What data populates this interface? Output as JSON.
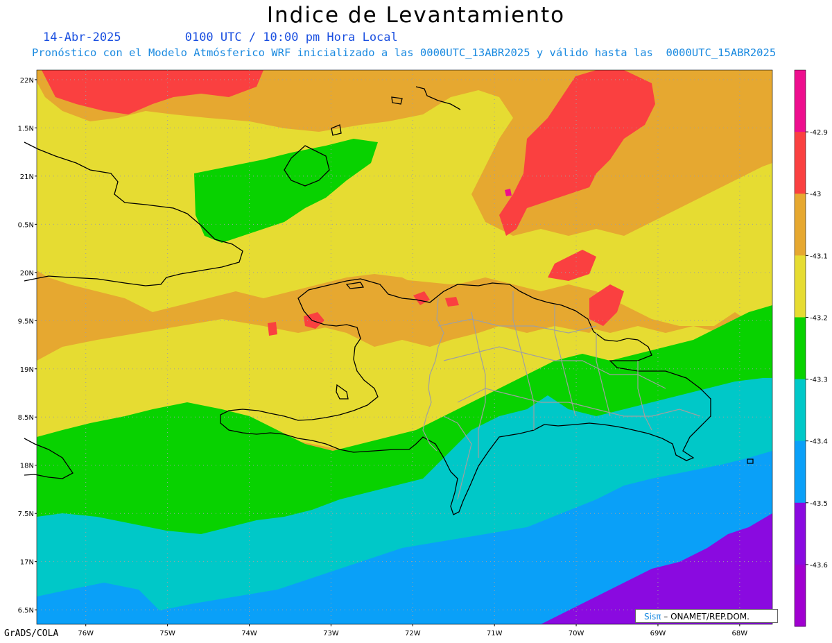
{
  "title": "Indice de Levantamiento",
  "subtitle_date": "14-Abr-2025",
  "subtitle_time": "0100 UTC / 10:00 pm Hora Local",
  "forecast_note": "Pronóstico con el Modelo Atmósferico WRF inicializado a las 0000UTC_13ABR2025 y válido hasta las  0000UTC_15ABR2025",
  "credit": "GrADS/COLA",
  "logo": {
    "brand": "Sisπ",
    "text": "– ONAMET/REP.DOM."
  },
  "map": {
    "lon_range": [
      -76.6,
      -67.6
    ],
    "lat_range": [
      16.35,
      22.1
    ],
    "lat_ticks": [
      "22N",
      "1.5N",
      "21N",
      "0.5N",
      "20N",
      "9.5N",
      "19N",
      "8.5N",
      "18N",
      "7.5N",
      "17N",
      "6.5N"
    ],
    "lon_ticks": [
      "76W",
      "75W",
      "74W",
      "73W",
      "72W",
      "71W",
      "70W",
      "69W",
      "68W"
    ]
  },
  "colorbar": {
    "labels": [
      "-42.9",
      "-43",
      "-43.1",
      "-43.2",
      "-43.3",
      "-43.4",
      "-43.5",
      "-43.6"
    ],
    "colors": [
      "#ee0e8e",
      "#fa4040",
      "#e6a830",
      "#e6dc32",
      "#08d200",
      "#00c8c8",
      "#0aa0f8",
      "#8a0ae0",
      "#a000d0"
    ]
  },
  "palette": {
    "orange": "#e6a830",
    "yellow": "#e6dc32",
    "green": "#08d200",
    "cyan": "#00c8c8",
    "blue": "#0aa0f8",
    "purple": "#8a0ae0",
    "red": "#fa4040",
    "magenta": "#ee0e8e",
    "coast": "#000000",
    "province": "#a0a0a0",
    "grid": "#a0a0a0"
  }
}
